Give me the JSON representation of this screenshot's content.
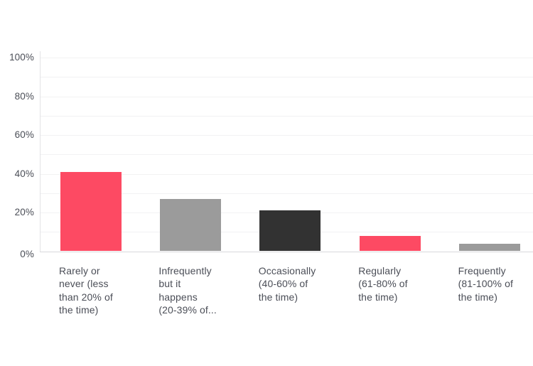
{
  "chart_data": {
    "type": "bar",
    "title": "",
    "xlabel": "",
    "ylabel": "",
    "categories": [
      "Rarely or never (less than 20% of the time)",
      "Infrequently but it happens (20-39% of...",
      "Occasionally (40-60% of the time)",
      "Regularly (61-80% of the time)",
      "Frequently (81-100% of the time)"
    ],
    "category_lines": [
      [
        "Rarely or",
        "never (less",
        "than 20% of",
        "the time)"
      ],
      [
        "Infrequently",
        "but it",
        "happens",
        "(20-39% of..."
      ],
      [
        "Occasionally",
        "(40-60% of",
        "the time)"
      ],
      [
        "Regularly",
        "(61-80% of",
        "the time)"
      ],
      [
        "Frequently",
        "(81-100% of",
        "the time)"
      ]
    ],
    "values": [
      41,
      27,
      21,
      8,
      4
    ],
    "value_unit": "%",
    "ylim": [
      0,
      100
    ],
    "yticks": [
      {
        "label": "0%",
        "value": 0
      },
      {
        "label": "20%",
        "value": 20
      },
      {
        "label": "40%",
        "value": 40
      },
      {
        "label": "60%",
        "value": 60
      },
      {
        "label": "80%",
        "value": 80
      },
      {
        "label": "100%",
        "value": 100
      }
    ],
    "gridline_step": 10,
    "grid": true,
    "legend_position": "none",
    "bar_colors": [
      "#fd4a63",
      "#9b9b9b",
      "#323232",
      "#fd4a63",
      "#9b9b9b"
    ]
  },
  "colors": {
    "background": "#ffffff",
    "axis_text": "#4b4e57",
    "gridline": "#f2f2f3",
    "baseline": "#d9d9dc",
    "axis_line": "#e3e3e6",
    "accent_pink": "#fd4a63",
    "neutral_gray": "#9b9b9b",
    "neutral_dark": "#323232"
  }
}
